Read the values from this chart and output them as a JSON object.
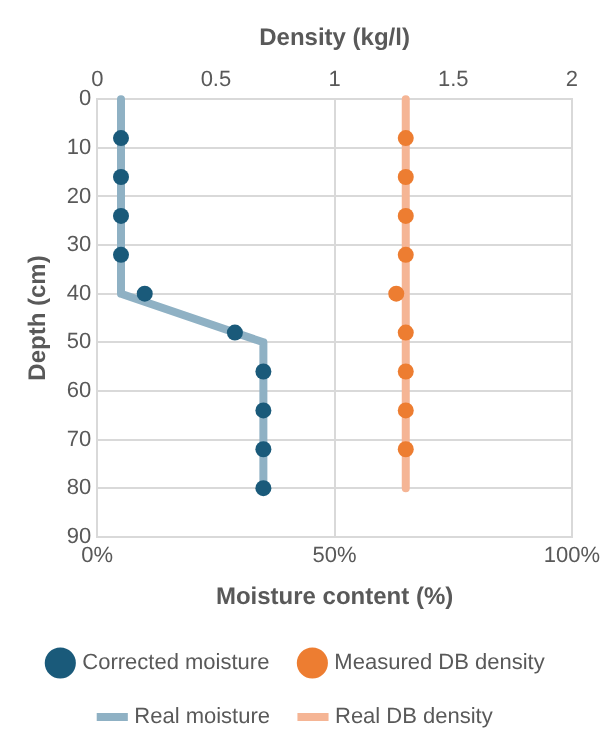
{
  "chart_data": {
    "type": "scatter",
    "xlabel": "Moisture content (%)",
    "x2label": "Density (kg/l)",
    "ylabel": "Depth (cm)",
    "xlim": [
      0,
      100
    ],
    "xticks": [
      {
        "value": 0,
        "label": "0%"
      },
      {
        "value": 50,
        "label": "50%"
      },
      {
        "value": 100,
        "label": "100%"
      }
    ],
    "x2lim": [
      0,
      2
    ],
    "x2ticks": [
      0,
      0.5,
      1,
      1.5,
      2
    ],
    "ylim": [
      90,
      0
    ],
    "yticks": [
      0,
      10,
      20,
      30,
      40,
      50,
      60,
      70,
      80,
      90
    ],
    "grid": true,
    "legend": "bottom",
    "series": [
      {
        "name": "Real moisture",
        "type": "line",
        "marker": "none",
        "color": "#8fb1c4",
        "x": [
          5,
          5,
          35,
          35
        ],
        "values": [
          0,
          40,
          50,
          80
        ]
      },
      {
        "name": "Corrected moisture",
        "type": "scatter",
        "marker": "circle",
        "color": "#1a5a7a",
        "x": [
          5,
          5,
          5,
          5,
          10,
          29,
          35,
          35,
          35,
          35
        ],
        "values": [
          8,
          16,
          24,
          32,
          40,
          48,
          56,
          64,
          72,
          80
        ]
      },
      {
        "name": "Real DB density",
        "type": "line",
        "marker": "none",
        "axis": "x2",
        "color": "#f5b595",
        "x": [
          1.3,
          1.3
        ],
        "values": [
          0,
          80
        ]
      },
      {
        "name": "Measured DB density",
        "type": "scatter",
        "marker": "circle",
        "axis": "x2",
        "color": "#ed7d31",
        "x": [
          1.3,
          1.3,
          1.3,
          1.3,
          1.26,
          1.3,
          1.3,
          1.3,
          1.3
        ],
        "values": [
          8,
          16,
          24,
          32,
          40,
          48,
          56,
          64,
          72
        ]
      }
    ]
  }
}
